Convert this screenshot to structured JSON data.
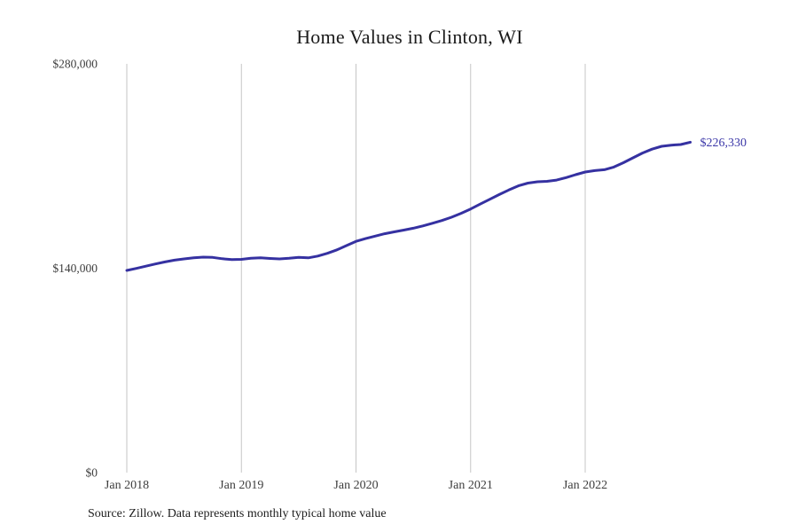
{
  "page": {
    "title": "Home Values in Clinton, WI",
    "source_note": "Source: Zillow. Data represents monthly typical home value"
  },
  "chart_data": {
    "type": "line",
    "title": "Home Values in Clinton, WI",
    "series_name": "Monthly typical home value",
    "x": [
      "2018-01",
      "2018-02",
      "2018-03",
      "2018-04",
      "2018-05",
      "2018-06",
      "2018-07",
      "2018-08",
      "2018-09",
      "2018-10",
      "2018-11",
      "2018-12",
      "2019-01",
      "2019-02",
      "2019-03",
      "2019-04",
      "2019-05",
      "2019-06",
      "2019-07",
      "2019-08",
      "2019-09",
      "2019-10",
      "2019-11",
      "2019-12",
      "2020-01",
      "2020-02",
      "2020-03",
      "2020-04",
      "2020-05",
      "2020-06",
      "2020-07",
      "2020-08",
      "2020-09",
      "2020-10",
      "2020-11",
      "2020-12",
      "2021-01",
      "2021-02",
      "2021-03",
      "2021-04",
      "2021-05",
      "2021-06",
      "2021-07",
      "2021-08",
      "2021-09",
      "2021-10",
      "2021-11",
      "2021-12",
      "2022-01",
      "2022-02",
      "2022-03",
      "2022-04",
      "2022-05",
      "2022-06",
      "2022-07",
      "2022-08",
      "2022-09",
      "2022-10",
      "2022-11",
      "2022-12"
    ],
    "values": [
      138500,
      139900,
      141400,
      142900,
      144300,
      145500,
      146400,
      147100,
      147600,
      147400,
      146500,
      145900,
      146100,
      146800,
      147100,
      146700,
      146400,
      146800,
      147500,
      147100,
      148300,
      150200,
      152600,
      155500,
      158400,
      160300,
      162000,
      163600,
      164900,
      166100,
      167400,
      169000,
      170800,
      172700,
      174900,
      177600,
      180600,
      183900,
      187200,
      190500,
      193600,
      196400,
      198300,
      199200,
      199500,
      200400,
      202100,
      204100,
      205900,
      206900,
      207500,
      209300,
      212300,
      215600,
      218900,
      221600,
      223500,
      224300,
      224700,
      226330
    ],
    "end_label": "$226,330",
    "yticks": [
      {
        "value": 0,
        "label": "$0"
      },
      {
        "value": 140000,
        "label": "$140,000"
      },
      {
        "value": 280000,
        "label": "$280,000"
      }
    ],
    "xticks": [
      {
        "x": "2018-01",
        "label": "Jan 2018"
      },
      {
        "x": "2019-01",
        "label": "Jan 2019"
      },
      {
        "x": "2020-01",
        "label": "Jan 2020"
      },
      {
        "x": "2021-01",
        "label": "Jan 2021"
      },
      {
        "x": "2022-01",
        "label": "Jan 2022"
      }
    ],
    "ylim": [
      0,
      280000
    ],
    "xlabel": "",
    "ylabel": "",
    "legend": "none",
    "grid": "vertical-only",
    "colors": {
      "line": "#3531a1",
      "end_label": "#3b37a8",
      "grid": "#c6c6c6",
      "title_text": "#1b1b1b",
      "tick_text": "#3d3d3d"
    }
  }
}
